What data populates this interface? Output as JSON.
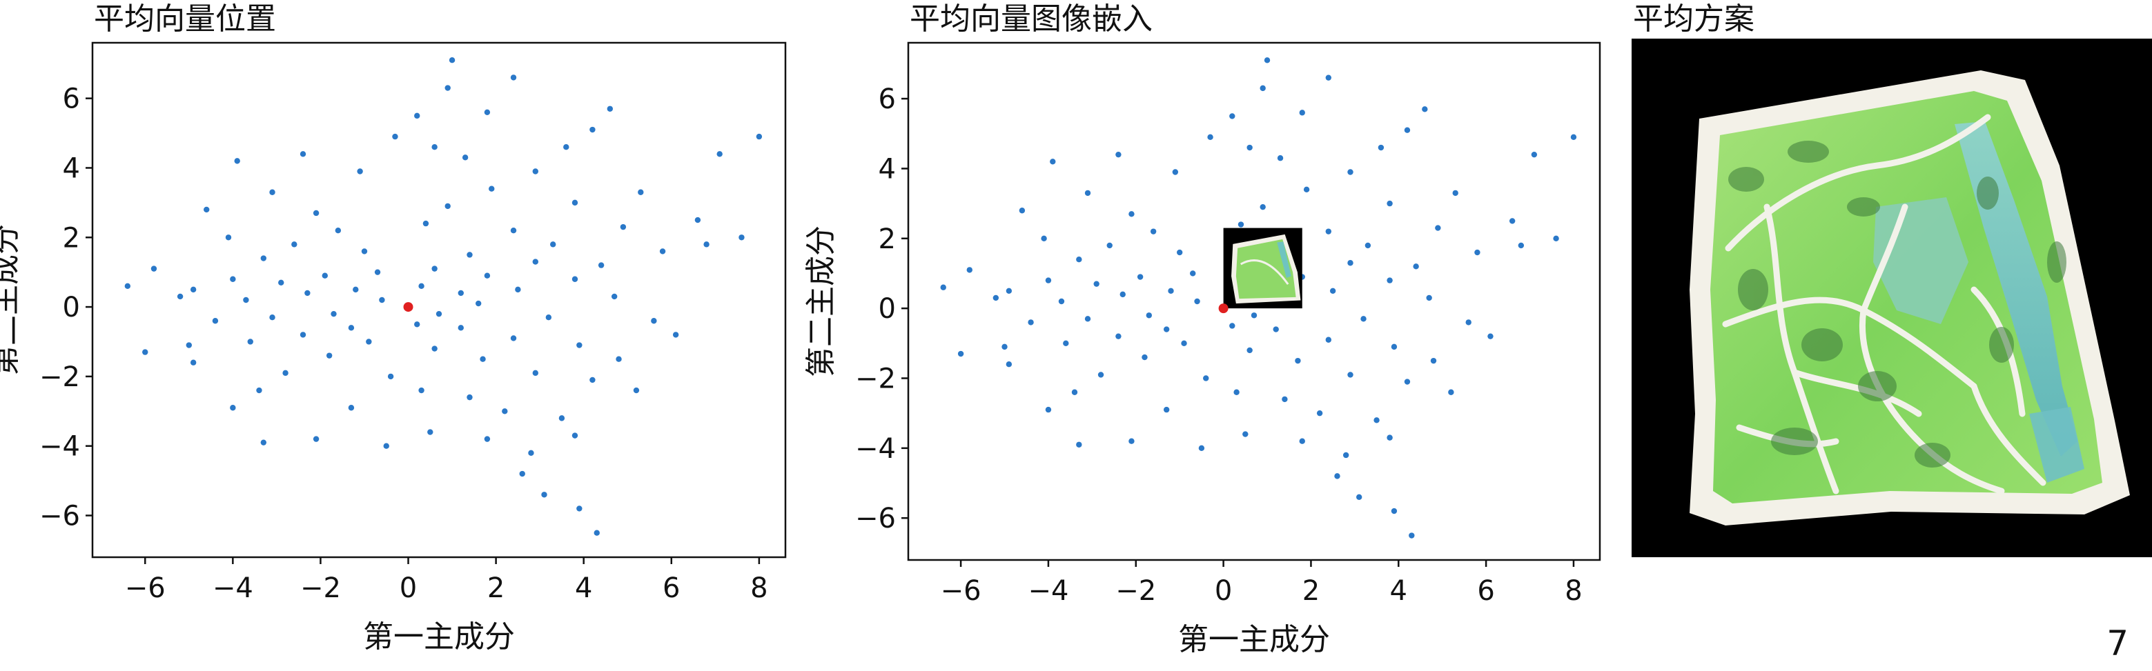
{
  "page_number": "7",
  "panels": {
    "left_title": "平均向量位置",
    "middle_title": "平均向量图像嵌入",
    "right_title": "平均方案"
  },
  "colors": {
    "points": "#2a78c8",
    "mean_point": "#e02020",
    "image_background": "#000000",
    "plan_green": "#8fdc62",
    "plan_water": "#6fc4c0",
    "plan_path": "#f2f2ea"
  },
  "chart_data": [
    {
      "type": "scatter",
      "title": "平均向量位置",
      "xlabel": "第一主成分",
      "ylabel": "第二主成分",
      "xlim": [
        -7.2,
        8.6
      ],
      "ylim": [
        -7.2,
        7.6
      ],
      "xticks": [
        "−6",
        "−4",
        "−2",
        "0",
        "2",
        "4",
        "6",
        "8"
      ],
      "yticks": [
        "−6",
        "−4",
        "−2",
        "0",
        "2",
        "4",
        "6"
      ],
      "grid": false,
      "series": [
        {
          "role": "samples",
          "points": [
            [
              1.0,
              7.1
            ],
            [
              2.4,
              6.6
            ],
            [
              0.9,
              6.3
            ],
            [
              4.6,
              5.7
            ],
            [
              1.8,
              5.6
            ],
            [
              0.2,
              5.5
            ],
            [
              8.0,
              4.9
            ],
            [
              4.2,
              5.1
            ],
            [
              7.1,
              4.4
            ],
            [
              3.6,
              4.6
            ],
            [
              -2.4,
              4.4
            ],
            [
              -0.3,
              4.9
            ],
            [
              -3.9,
              4.2
            ],
            [
              0.6,
              4.6
            ],
            [
              1.3,
              4.3
            ],
            [
              2.9,
              3.9
            ],
            [
              5.3,
              3.3
            ],
            [
              -1.1,
              3.9
            ],
            [
              -3.1,
              3.3
            ],
            [
              1.9,
              3.4
            ],
            [
              3.8,
              3.0
            ],
            [
              6.6,
              2.5
            ],
            [
              -4.6,
              2.8
            ],
            [
              -2.1,
              2.7
            ],
            [
              0.9,
              2.9
            ],
            [
              4.9,
              2.3
            ],
            [
              -4.1,
              2.0
            ],
            [
              2.4,
              2.2
            ],
            [
              -6.4,
              0.6
            ],
            [
              -5.8,
              1.1
            ],
            [
              -4.9,
              0.5
            ],
            [
              -1.6,
              2.2
            ],
            [
              0.4,
              2.4
            ],
            [
              3.3,
              1.8
            ],
            [
              5.8,
              1.6
            ],
            [
              6.8,
              1.8
            ],
            [
              7.6,
              2.0
            ],
            [
              -3.3,
              1.4
            ],
            [
              -2.6,
              1.8
            ],
            [
              -1.0,
              1.6
            ],
            [
              1.4,
              1.5
            ],
            [
              2.9,
              1.3
            ],
            [
              4.4,
              1.2
            ],
            [
              -5.2,
              0.3
            ],
            [
              -4.0,
              0.8
            ],
            [
              -2.9,
              0.7
            ],
            [
              -1.9,
              0.9
            ],
            [
              -0.7,
              1.0
            ],
            [
              0.6,
              1.1
            ],
            [
              1.8,
              0.9
            ],
            [
              3.8,
              0.8
            ],
            [
              -3.7,
              0.2
            ],
            [
              -2.3,
              0.4
            ],
            [
              -1.2,
              0.5
            ],
            [
              0.3,
              0.6
            ],
            [
              1.2,
              0.4
            ],
            [
              2.5,
              0.5
            ],
            [
              4.7,
              0.3
            ],
            [
              -6.0,
              -1.3
            ],
            [
              -5.0,
              -1.1
            ],
            [
              -4.4,
              -0.4
            ],
            [
              -3.1,
              -0.3
            ],
            [
              -1.7,
              -0.2
            ],
            [
              -0.6,
              0.2
            ],
            [
              0.7,
              -0.2
            ],
            [
              1.6,
              0.1
            ],
            [
              3.2,
              -0.3
            ],
            [
              5.6,
              -0.4
            ],
            [
              6.1,
              -0.8
            ],
            [
              -4.9,
              -1.6
            ],
            [
              -3.6,
              -1.0
            ],
            [
              -2.4,
              -0.8
            ],
            [
              -1.3,
              -0.6
            ],
            [
              0.2,
              -0.5
            ],
            [
              1.2,
              -0.6
            ],
            [
              2.4,
              -0.9
            ],
            [
              3.9,
              -1.1
            ],
            [
              4.8,
              -1.5
            ],
            [
              -4.0,
              -2.9
            ],
            [
              -3.4,
              -2.4
            ],
            [
              -2.8,
              -1.9
            ],
            [
              -1.8,
              -1.4
            ],
            [
              -0.9,
              -1.0
            ],
            [
              0.6,
              -1.2
            ],
            [
              1.7,
              -1.5
            ],
            [
              2.9,
              -1.9
            ],
            [
              4.2,
              -2.1
            ],
            [
              5.2,
              -2.4
            ],
            [
              -3.3,
              -3.9
            ],
            [
              -2.1,
              -3.8
            ],
            [
              -1.3,
              -2.9
            ],
            [
              -0.4,
              -2.0
            ],
            [
              0.3,
              -2.4
            ],
            [
              1.4,
              -2.6
            ],
            [
              2.2,
              -3.0
            ],
            [
              3.5,
              -3.2
            ],
            [
              -0.5,
              -4.0
            ],
            [
              0.5,
              -3.6
            ],
            [
              1.8,
              -3.8
            ],
            [
              2.8,
              -4.2
            ],
            [
              3.8,
              -3.7
            ],
            [
              2.6,
              -4.8
            ],
            [
              3.1,
              -5.4
            ],
            [
              3.9,
              -5.8
            ],
            [
              4.3,
              -6.5
            ]
          ]
        },
        {
          "role": "mean",
          "points": [
            [
              0.0,
              0.0
            ]
          ]
        }
      ]
    },
    {
      "type": "scatter",
      "title": "平均向量图像嵌入",
      "xlabel": "第一主成分",
      "ylabel": "第二主成分",
      "xlim": [
        -7.2,
        8.6
      ],
      "ylim": [
        -7.2,
        7.6
      ],
      "xticks": [
        "−6",
        "−4",
        "−2",
        "0",
        "2",
        "4",
        "6",
        "8"
      ],
      "yticks": [
        "−6",
        "−4",
        "−2",
        "0",
        "2",
        "4",
        "6"
      ],
      "grid": false,
      "embedded_image": {
        "content": "mean-plan-thumbnail",
        "x_range": [
          0.0,
          1.8
        ],
        "y_range": [
          0.0,
          2.3
        ]
      },
      "series_same_as_panel": 0
    }
  ]
}
